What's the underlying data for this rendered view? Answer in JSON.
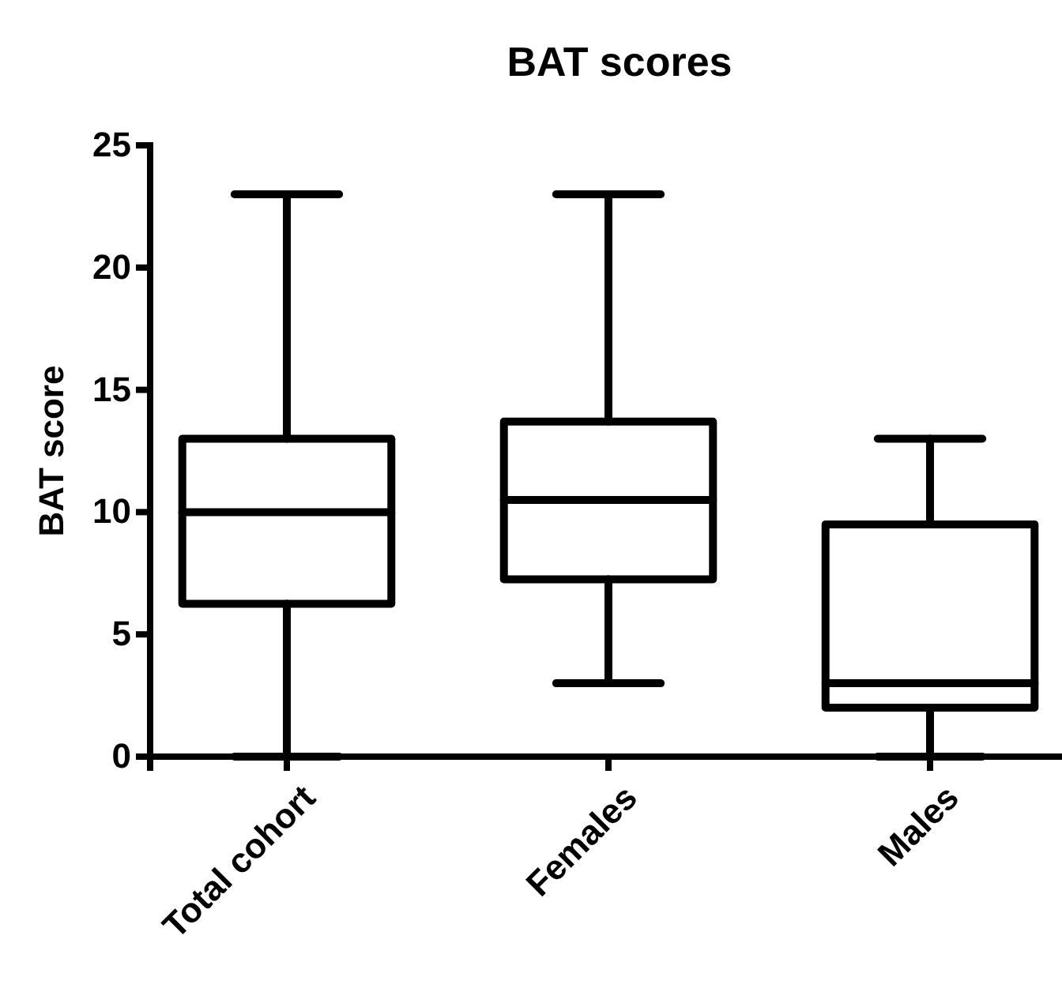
{
  "chart_data": {
    "type": "box",
    "title": "BAT scores",
    "ylabel": "BAT score",
    "categories": [
      "Total cohort",
      "Females",
      "Males"
    ],
    "boxes": [
      {
        "low": 0,
        "q1": 6.25,
        "median": 10,
        "q3": 13,
        "high": 23
      },
      {
        "low": 3,
        "q1": 7.25,
        "median": 10.5,
        "q3": 13.7,
        "high": 23
      },
      {
        "low": 0,
        "q1": 2,
        "median": 3,
        "q3": 9.5,
        "high": 13
      }
    ],
    "color": "#000000",
    "ylim": [
      0,
      25
    ],
    "yticks": [
      0,
      5,
      10,
      15,
      20,
      25
    ]
  }
}
